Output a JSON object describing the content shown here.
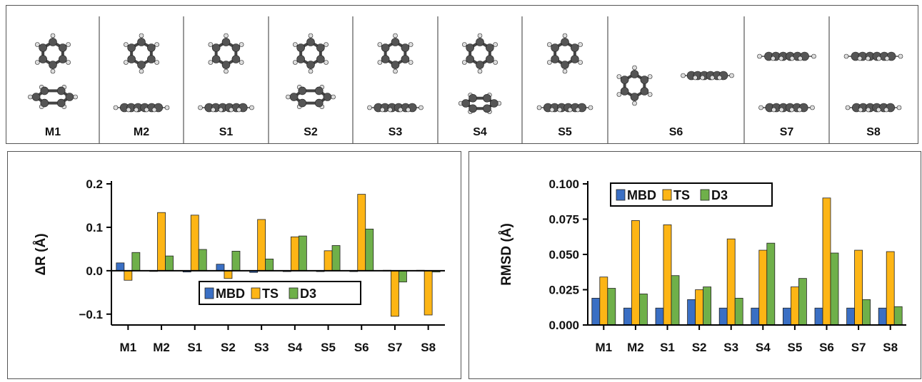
{
  "structures": {
    "labels": [
      "M1",
      "M2",
      "S1",
      "S2",
      "S3",
      "S4",
      "S5",
      "S6",
      "S7",
      "S8"
    ]
  },
  "chart_data": [
    {
      "type": "bar",
      "categories": [
        "M1",
        "M2",
        "S1",
        "S2",
        "S3",
        "S4",
        "S5",
        "S6",
        "S7",
        "S8"
      ],
      "series": [
        {
          "name": "MBD",
          "color": "#3a6fc4",
          "values": [
            0.018,
            0.0,
            -0.003,
            0.015,
            -0.004,
            -0.002,
            -0.002,
            -0.002,
            0.001,
            0.001
          ]
        },
        {
          "name": "TS",
          "color": "#fdb515",
          "values": [
            -0.022,
            0.134,
            0.128,
            -0.018,
            0.118,
            0.078,
            0.046,
            0.176,
            -0.105,
            -0.102
          ]
        },
        {
          "name": "D3",
          "color": "#6fb04a",
          "values": [
            0.042,
            0.034,
            0.049,
            0.045,
            0.027,
            0.08,
            0.058,
            0.096,
            -0.026,
            -0.003
          ]
        }
      ],
      "ylabel": "ΔR (Å)",
      "ylim": [
        -0.125,
        0.2
      ],
      "yticks": [
        -0.1,
        0.0,
        0.1,
        0.2
      ],
      "ytick_labels": [
        "−0.1",
        "0.0",
        "0.1",
        "0.2"
      ],
      "grid": false,
      "legend_position": "lower-right"
    },
    {
      "type": "bar",
      "categories": [
        "M1",
        "M2",
        "S1",
        "S2",
        "S3",
        "S4",
        "S5",
        "S6",
        "S7",
        "S8"
      ],
      "series": [
        {
          "name": "MBD",
          "color": "#3a6fc4",
          "values": [
            0.019,
            0.012,
            0.012,
            0.018,
            0.012,
            0.012,
            0.012,
            0.012,
            0.012,
            0.012
          ]
        },
        {
          "name": "TS",
          "color": "#fdb515",
          "values": [
            0.034,
            0.074,
            0.071,
            0.025,
            0.061,
            0.053,
            0.027,
            0.09,
            0.053,
            0.052
          ]
        },
        {
          "name": "D3",
          "color": "#6fb04a",
          "values": [
            0.026,
            0.022,
            0.035,
            0.027,
            0.019,
            0.058,
            0.033,
            0.051,
            0.018,
            0.013
          ]
        }
      ],
      "ylabel": "RMSD (Å)",
      "ylim": [
        0,
        0.1
      ],
      "yticks": [
        0,
        0.025,
        0.05,
        0.075,
        0.1
      ],
      "ytick_labels": [
        "0.000",
        "0.025",
        "0.050",
        "0.075",
        "0.100"
      ],
      "grid": false,
      "legend_position": "top-left"
    }
  ]
}
